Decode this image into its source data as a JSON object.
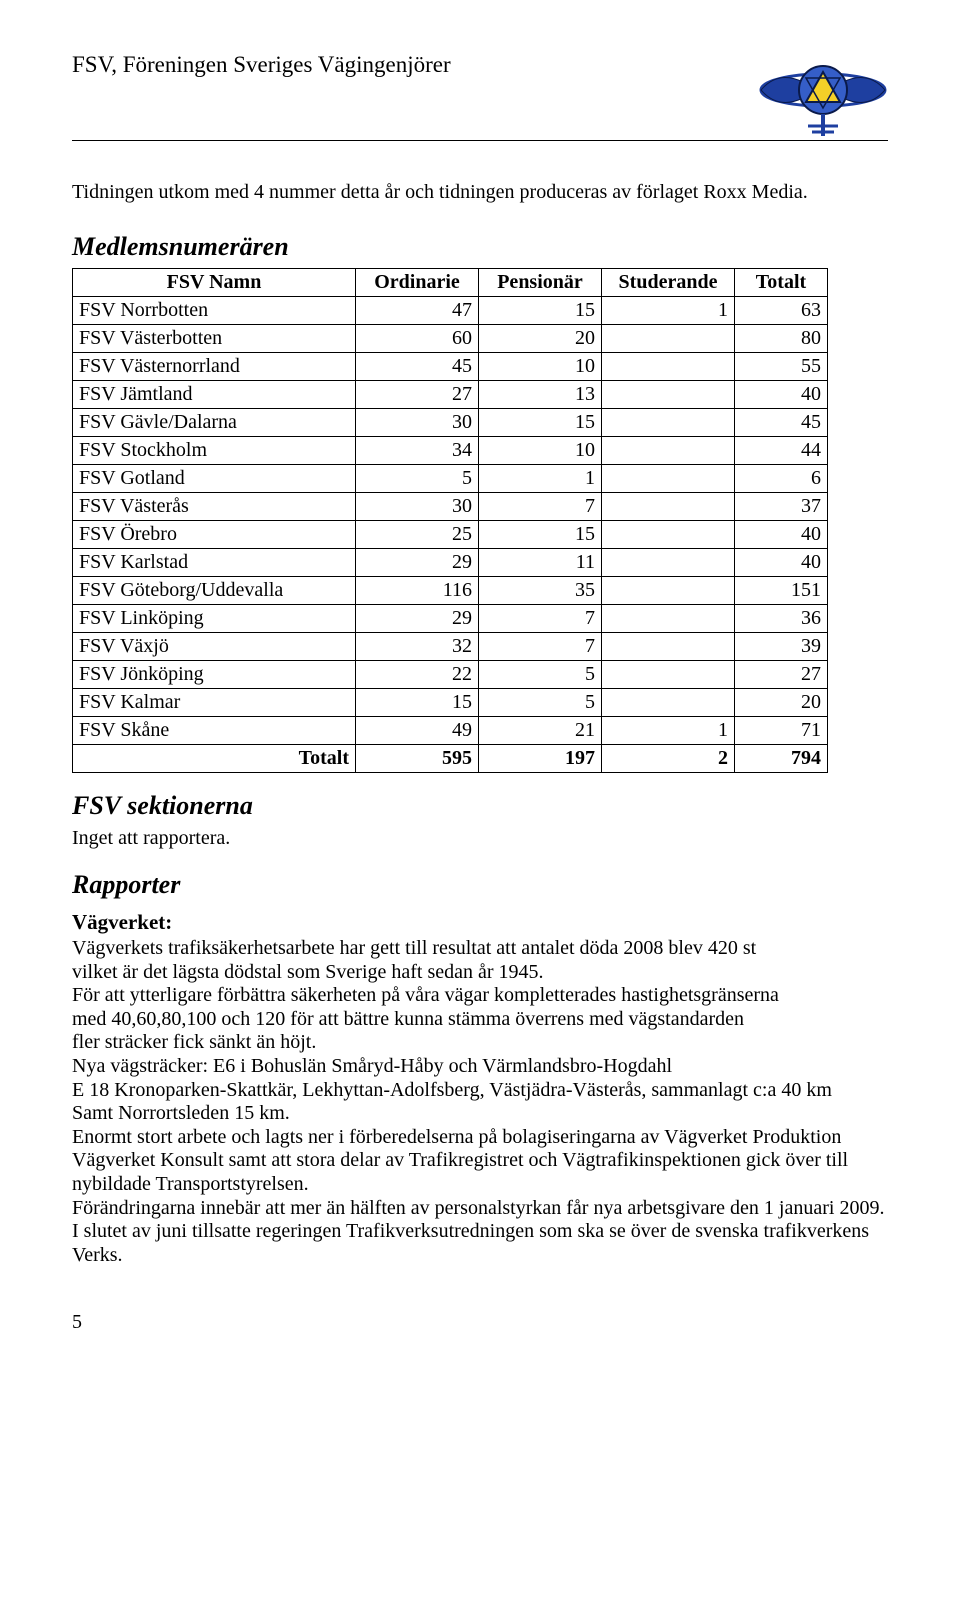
{
  "header": {
    "org_title": "FSV, Föreningen Sveriges Vägingenjörer",
    "logo_colors": {
      "wings": "#1e3fa0",
      "triangle_fill": "#f4d028",
      "outline": "#0a1a4a"
    }
  },
  "lead_text": "Tidningen utkom med 4 nummer detta år och tidningen produceras av förlaget Roxx Media.",
  "section_titles": {
    "members": "Medlemsnumerären",
    "sections": "FSV sektionerna",
    "reports": "Rapporter"
  },
  "members_table": {
    "columns": [
      "FSV Namn",
      "Ordinarie",
      "Pensionär",
      "Studerande",
      "Totalt"
    ],
    "col_align": [
      "left",
      "right",
      "right",
      "right",
      "right"
    ],
    "rows": [
      [
        "FSV Norrbotten",
        "47",
        "15",
        "1",
        "63"
      ],
      [
        "FSV Västerbotten",
        "60",
        "20",
        "",
        "80"
      ],
      [
        "FSV Västernorrland",
        "45",
        "10",
        "",
        "55"
      ],
      [
        "FSV Jämtland",
        "27",
        "13",
        "",
        "40"
      ],
      [
        "FSV Gävle/Dalarna",
        "30",
        "15",
        "",
        "45"
      ],
      [
        "FSV Stockholm",
        "34",
        "10",
        "",
        "44"
      ],
      [
        "FSV Gotland",
        "5",
        "1",
        "",
        "6"
      ],
      [
        "FSV Västerås",
        "30",
        "7",
        "",
        "37"
      ],
      [
        "FSV Örebro",
        "25",
        "15",
        "",
        "40"
      ],
      [
        "FSV Karlstad",
        "29",
        "11",
        "",
        "40"
      ],
      [
        "FSV Göteborg/Uddevalla",
        "116",
        "35",
        "",
        "151"
      ],
      [
        "FSV Linköping",
        "29",
        "7",
        "",
        "36"
      ],
      [
        "FSV Växjö",
        "32",
        "7",
        "",
        "39"
      ],
      [
        "FSV Jönköping",
        "22",
        "5",
        "",
        "27"
      ],
      [
        "FSV Kalmar",
        "15",
        "5",
        "",
        "20"
      ],
      [
        "FSV Skåne",
        "49",
        "21",
        "1",
        "71"
      ]
    ],
    "total_row": [
      "Totalt",
      "595",
      "197",
      "2",
      "794"
    ]
  },
  "sections_note": "Inget att rapportera.",
  "reports": {
    "vagverket_heading": "Vägverket:",
    "vagverket_body": "Vägverkets trafiksäkerhetsarbete har gett till resultat att antalet döda 2008 blev 420 st\nvilket är det lägsta dödstal som Sverige haft sedan år 1945.\nFör att ytterligare förbättra säkerheten på våra vägar kompletterades hastighetsgränserna\nmed 40,60,80,100 och 120 för att bättre kunna stämma överrens med vägstandarden\nfler sträcker fick sänkt än höjt.\nNya vägsträcker: E6 i Bohuslän Småryd-Håby och Värmlandsbro-Hogdahl\nE 18 Kronoparken-Skattkär, Lekhyttan-Adolfsberg, Västjädra-Västerås, sammanlagt c:a 40 km\nSamt Norrortsleden 15 km.\nEnormt stort arbete och lagts ner i förberedelserna på bolagiseringarna av Vägverket Produktion\nVägverket Konsult samt att stora delar av Trafikregistret och Vägtrafikinspektionen gick över till\nnybildade Transportstyrelsen.\nFörändringarna innebär att mer än hälften av personalstyrkan får nya arbetsgivare den 1 januari 2009.\nI slutet av juni tillsatte regeringen Trafikverksutredningen som ska se över de svenska trafikverkens\nVerks."
  },
  "page_number": "5"
}
